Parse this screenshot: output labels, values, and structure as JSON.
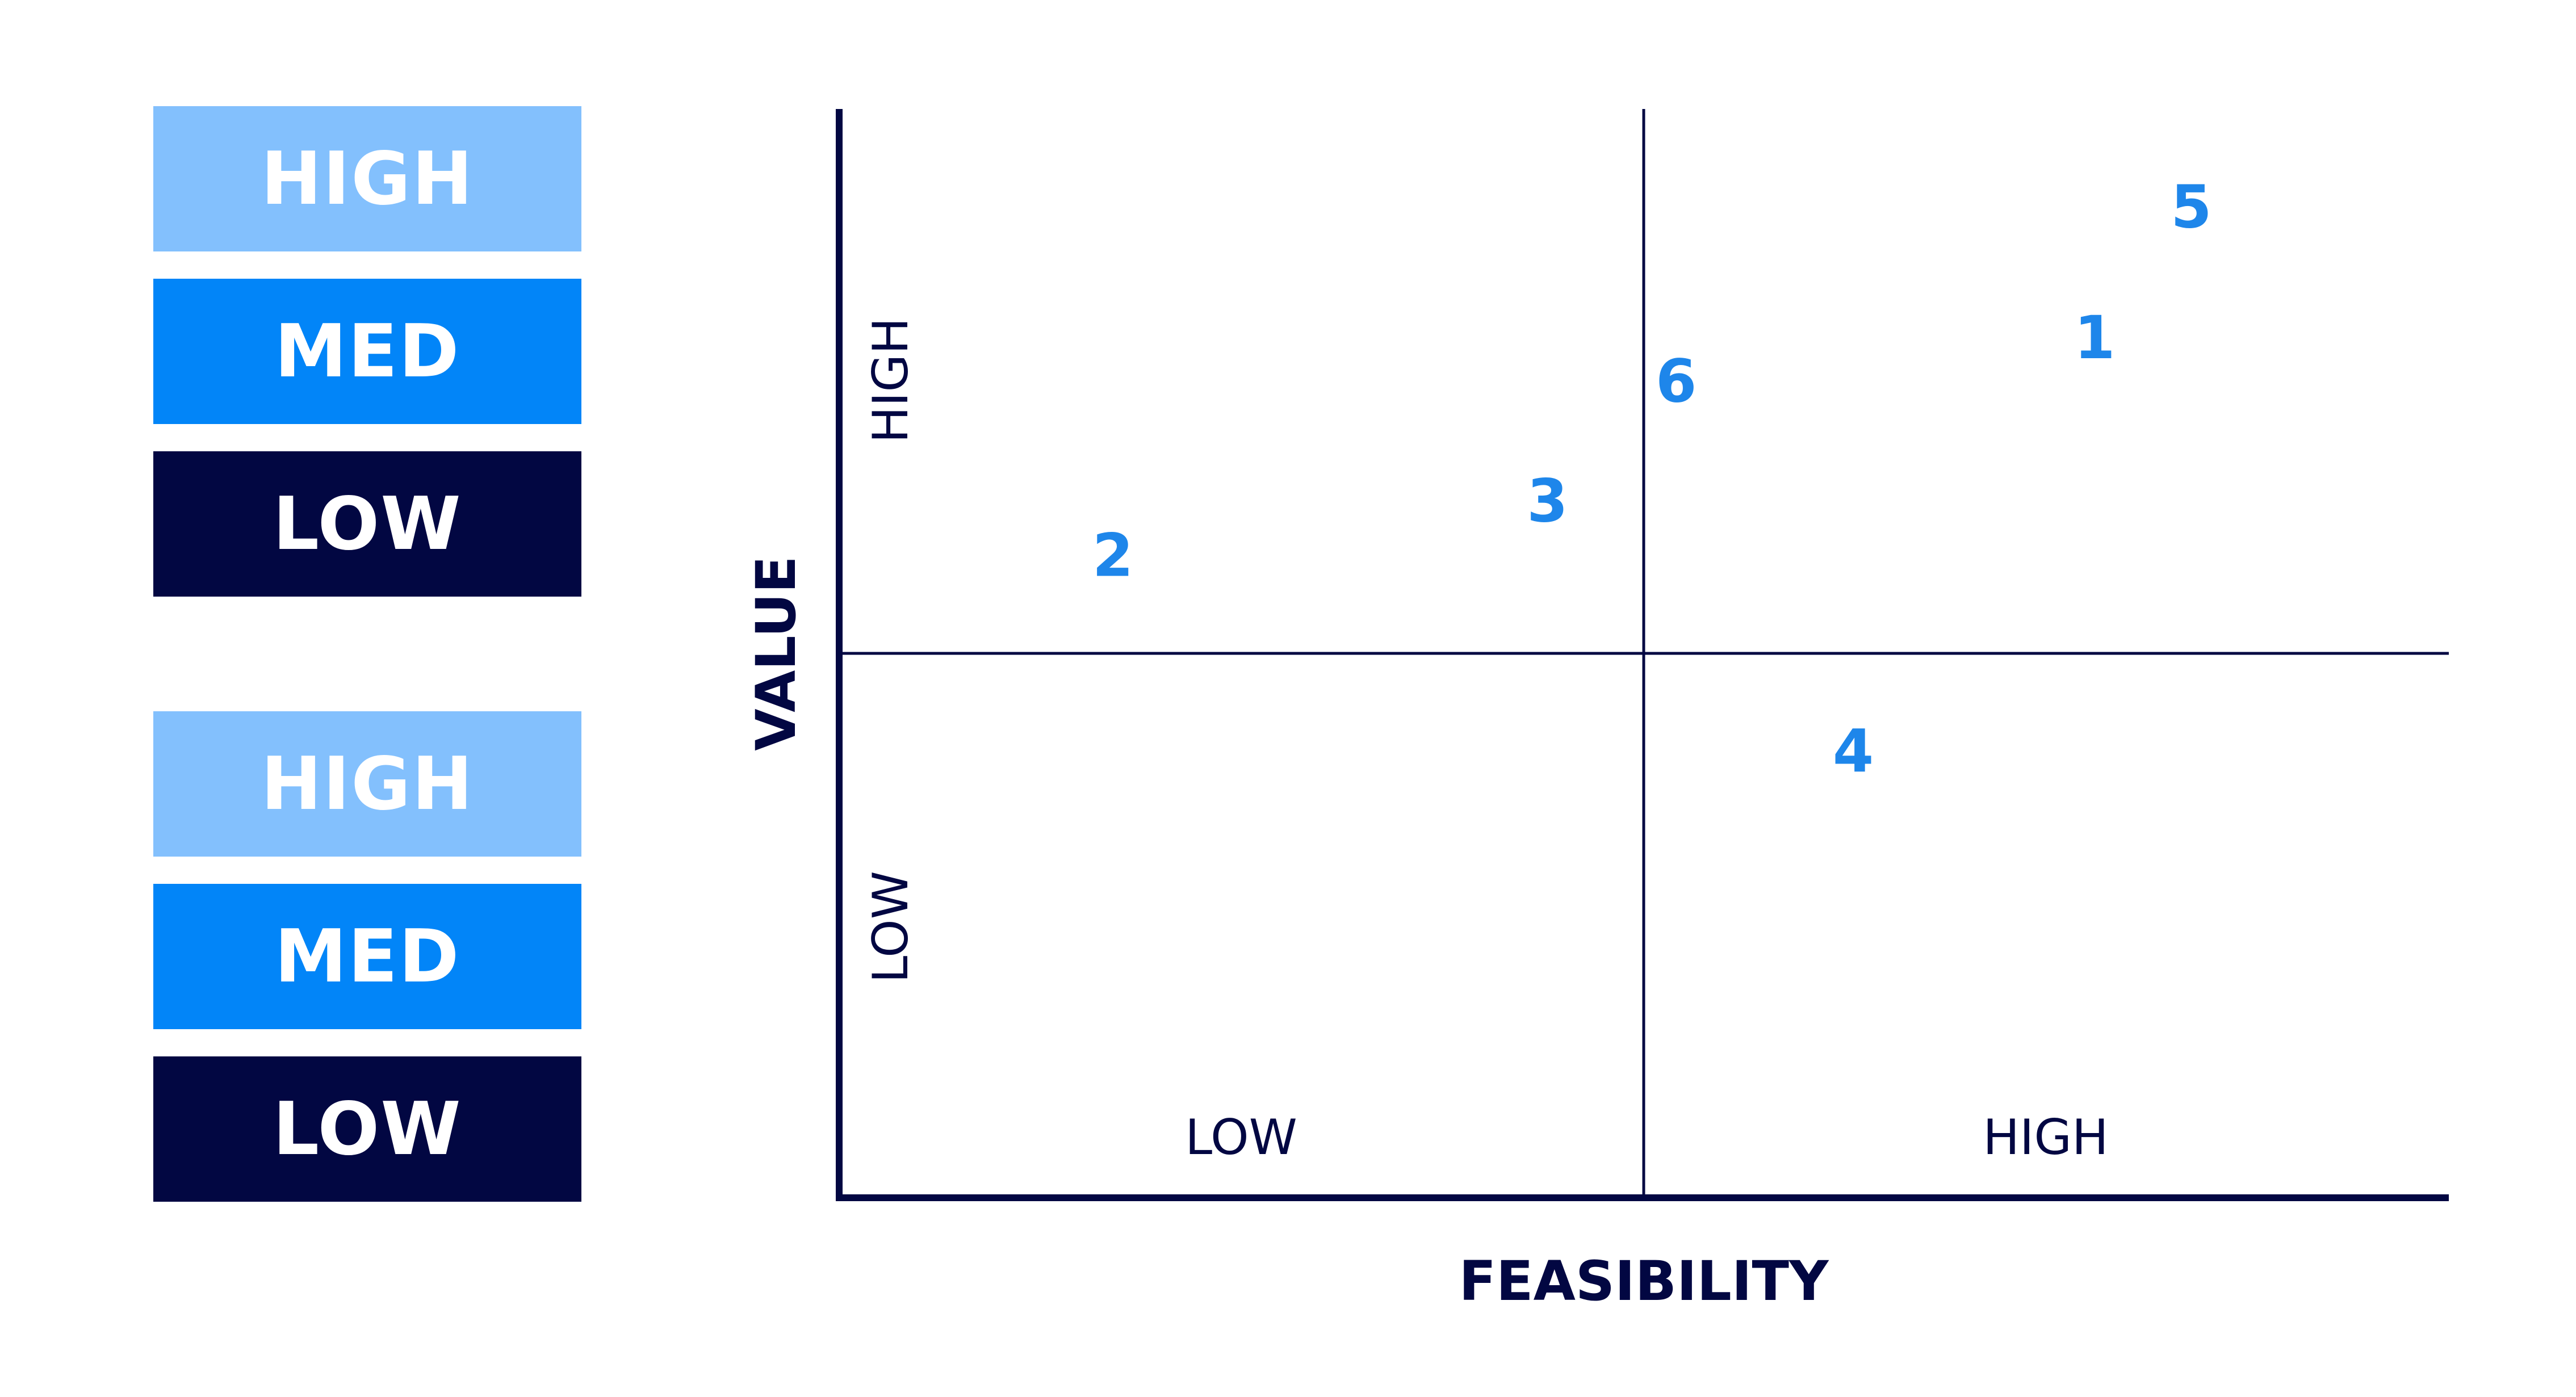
{
  "legend_groups": [
    {
      "items": [
        {
          "label": "HIGH",
          "level": "high"
        },
        {
          "label": "MED",
          "level": "med"
        },
        {
          "label": "LOW",
          "level": "low"
        }
      ]
    },
    {
      "items": [
        {
          "label": "HIGH",
          "level": "high"
        },
        {
          "label": "MED",
          "level": "med"
        },
        {
          "label": "LOW",
          "level": "low"
        }
      ]
    }
  ],
  "colors": {
    "high": "#83c0fd",
    "med": "#0285f8",
    "low": "#020742",
    "axis": "#020742",
    "point": "#1e86ea",
    "background": "#ffffff"
  },
  "matrix": {
    "x_axis_title": "FEASIBILITY",
    "y_axis_title": "VALUE",
    "x_low_label": "LOW",
    "x_high_label": "HIGH",
    "y_low_label": "LOW",
    "y_high_label": "HIGH"
  },
  "chart_data": {
    "type": "scatter",
    "xlabel": "FEASIBILITY",
    "ylabel": "VALUE",
    "xlim": [
      0,
      1
    ],
    "ylim": [
      0,
      1
    ],
    "quadrant_split": {
      "x": 0.5,
      "y": 0.5
    },
    "points": [
      {
        "label": "1",
        "x": 0.78,
        "y": 0.79
      },
      {
        "label": "2",
        "x": 0.17,
        "y": 0.59
      },
      {
        "label": "3",
        "x": 0.44,
        "y": 0.64
      },
      {
        "label": "4",
        "x": 0.63,
        "y": 0.41
      },
      {
        "label": "5",
        "x": 0.84,
        "y": 0.91
      },
      {
        "label": "6",
        "x": 0.52,
        "y": 0.75
      }
    ]
  }
}
